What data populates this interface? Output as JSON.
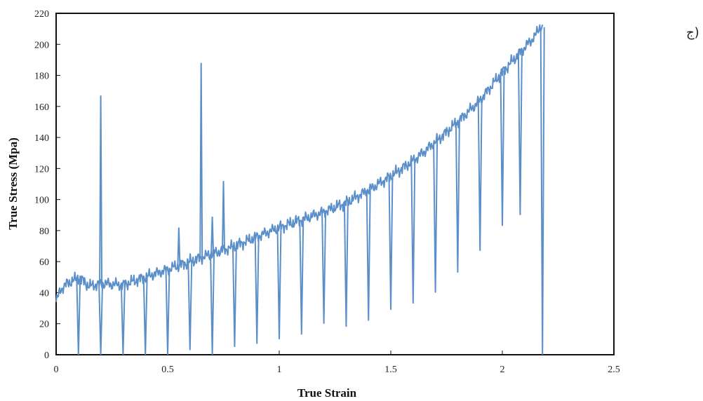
{
  "chart_data": {
    "type": "line",
    "title": "",
    "xlabel": "True Strain",
    "ylabel": "True Stress (Mpa)",
    "xlim": [
      0,
      2.5
    ],
    "ylim": [
      0,
      220
    ],
    "x_ticks": [
      "0",
      "0.5",
      "1",
      "1.5",
      "2",
      "2.5"
    ],
    "y_ticks": [
      "0",
      "20",
      "40",
      "60",
      "80",
      "100",
      "120",
      "140",
      "160",
      "180",
      "200",
      "220"
    ],
    "grid": false,
    "color": "#5b8fc9",
    "series": [
      {
        "name": "",
        "points": [
          [
            0.0,
            34
          ],
          [
            0.02,
            42
          ],
          [
            0.05,
            46
          ],
          [
            0.08,
            48
          ],
          [
            0.1,
            50
          ],
          [
            0.15,
            44
          ],
          [
            0.2,
            46
          ],
          [
            0.3,
            45
          ],
          [
            0.4,
            50
          ],
          [
            0.5,
            55
          ],
          [
            0.6,
            60
          ],
          [
            0.7,
            65
          ],
          [
            0.8,
            70
          ],
          [
            0.9,
            76
          ],
          [
            1.0,
            82
          ],
          [
            1.1,
            87
          ],
          [
            1.2,
            92
          ],
          [
            1.3,
            98
          ],
          [
            1.4,
            106
          ],
          [
            1.5,
            115
          ],
          [
            1.6,
            125
          ],
          [
            1.7,
            137
          ],
          [
            1.8,
            150
          ],
          [
            1.9,
            164
          ],
          [
            2.0,
            182
          ],
          [
            2.1,
            198
          ],
          [
            2.15,
            206
          ],
          [
            2.17,
            212
          ],
          [
            2.18,
            210
          ]
        ],
        "drops": [
          [
            0.1,
            0
          ],
          [
            0.2,
            0
          ],
          [
            0.3,
            0
          ],
          [
            0.4,
            0
          ],
          [
            0.5,
            0
          ],
          [
            0.6,
            3
          ],
          [
            0.7,
            0
          ],
          [
            0.8,
            5
          ],
          [
            0.9,
            7
          ],
          [
            1.0,
            10
          ],
          [
            1.1,
            13
          ],
          [
            1.2,
            20
          ],
          [
            1.3,
            18
          ],
          [
            1.4,
            22
          ],
          [
            1.5,
            29
          ],
          [
            1.6,
            33
          ],
          [
            1.7,
            40
          ],
          [
            1.8,
            53
          ],
          [
            1.9,
            67
          ],
          [
            2.0,
            83
          ],
          [
            2.08,
            90
          ],
          [
            2.18,
            0
          ]
        ],
        "spikes": [
          [
            0.2,
            167
          ],
          [
            0.55,
            82
          ],
          [
            0.65,
            188
          ],
          [
            0.7,
            89
          ],
          [
            0.75,
            112
          ]
        ]
      }
    ]
  },
  "corner_label": "ج)"
}
